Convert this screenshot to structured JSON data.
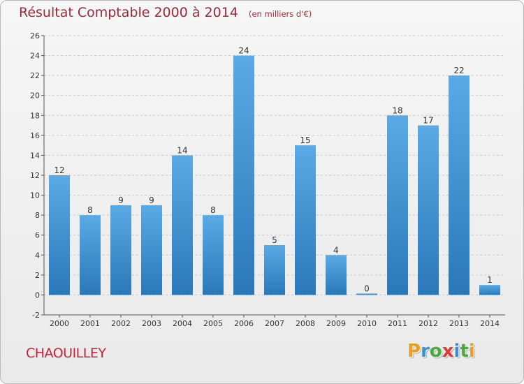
{
  "header": {
    "title": "Résultat Comptable 2000 à 2014",
    "subtitle": "(en milliers d'€)"
  },
  "footer": {
    "commune": "CHAOUILLEY",
    "logo_letters": [
      "P",
      "r",
      "o",
      "x",
      "i",
      "t",
      "i"
    ],
    "logo_colors": [
      "#e8a020",
      "#3d8fd0",
      "#4caa3c",
      "#e03a3a",
      "#3d8fd0",
      "#4caa3c",
      "#e8a020"
    ]
  },
  "chart_data": {
    "type": "bar",
    "categories": [
      "2000",
      "2001",
      "2002",
      "2003",
      "2004",
      "2005",
      "2006",
      "2007",
      "2008",
      "2009",
      "2010",
      "2011",
      "2012",
      "2013",
      "2014"
    ],
    "values": [
      12,
      8,
      9,
      9,
      14,
      8,
      24,
      5,
      15,
      4,
      0,
      18,
      17,
      22,
      1
    ],
    "data_labels": [
      "12",
      "8",
      "9",
      "9",
      "14",
      "8",
      "24",
      "5",
      "15",
      "4",
      "0",
      "18",
      "17",
      "22",
      "1"
    ],
    "yticks": [
      "-2",
      "0",
      "2",
      "4",
      "6",
      "8",
      "10",
      "12",
      "14",
      "16",
      "18",
      "20",
      "22",
      "24",
      "26"
    ],
    "ylim": [
      -2,
      26
    ],
    "grid": true,
    "bar_color_top": "#5aaae6",
    "bar_color_bottom": "#2a78b8",
    "axis_color": "#555555",
    "grid_color": "#c8c8c8"
  }
}
